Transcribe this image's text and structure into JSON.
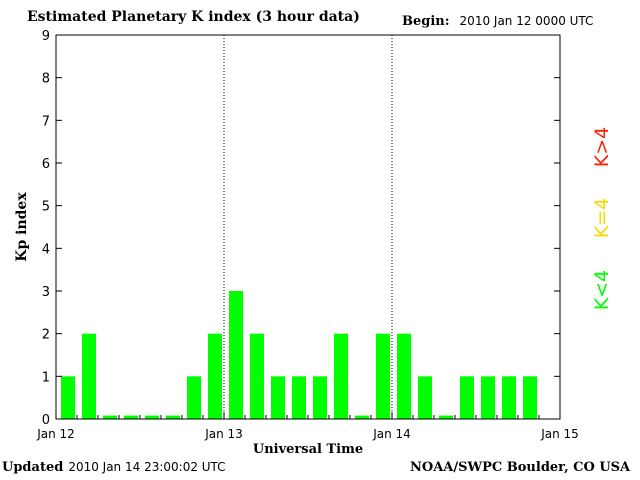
{
  "header": {
    "title": "Estimated Planetary K index (3 hour data)",
    "begin_label": "Begin:",
    "begin_value": "2010 Jan 12 0000 UTC"
  },
  "footer": {
    "updated_label": "Updated",
    "updated_value": "2010 Jan 14 23:00:02 UTC",
    "credit": "NOAA/SWPC Boulder, CO USA"
  },
  "legend": [
    {
      "label": "K<4",
      "color": "#00ff00"
    },
    {
      "label": "K=4",
      "color": "#ffd700"
    },
    {
      "label": "K>4",
      "color": "#ff2000"
    }
  ],
  "chart_data": {
    "type": "bar",
    "title": "Estimated Planetary K index (3 hour data)",
    "xlabel": "Universal Time",
    "ylabel": "Kp index",
    "ylim": [
      0,
      9
    ],
    "yticks": [
      0,
      1,
      2,
      3,
      4,
      5,
      6,
      7,
      8,
      9
    ],
    "xtick_labels": [
      "Jan 12",
      "Jan 13",
      "Jan 14",
      "Jan 15"
    ],
    "x": [
      "00",
      "03",
      "06",
      "09",
      "12",
      "15",
      "18",
      "21",
      "00",
      "03",
      "06",
      "09",
      "12",
      "15",
      "18",
      "21",
      "00",
      "03",
      "06",
      "09",
      "12",
      "15",
      "18",
      "21"
    ],
    "values": [
      1,
      2,
      0,
      0,
      0,
      0,
      1,
      2,
      3,
      2,
      1,
      1,
      1,
      2,
      0,
      2,
      2,
      1,
      0,
      1,
      1,
      1,
      1,
      null
    ],
    "bar_color": "#00ff00",
    "day_dividers": [
      "Jan 13",
      "Jan 14"
    ]
  }
}
